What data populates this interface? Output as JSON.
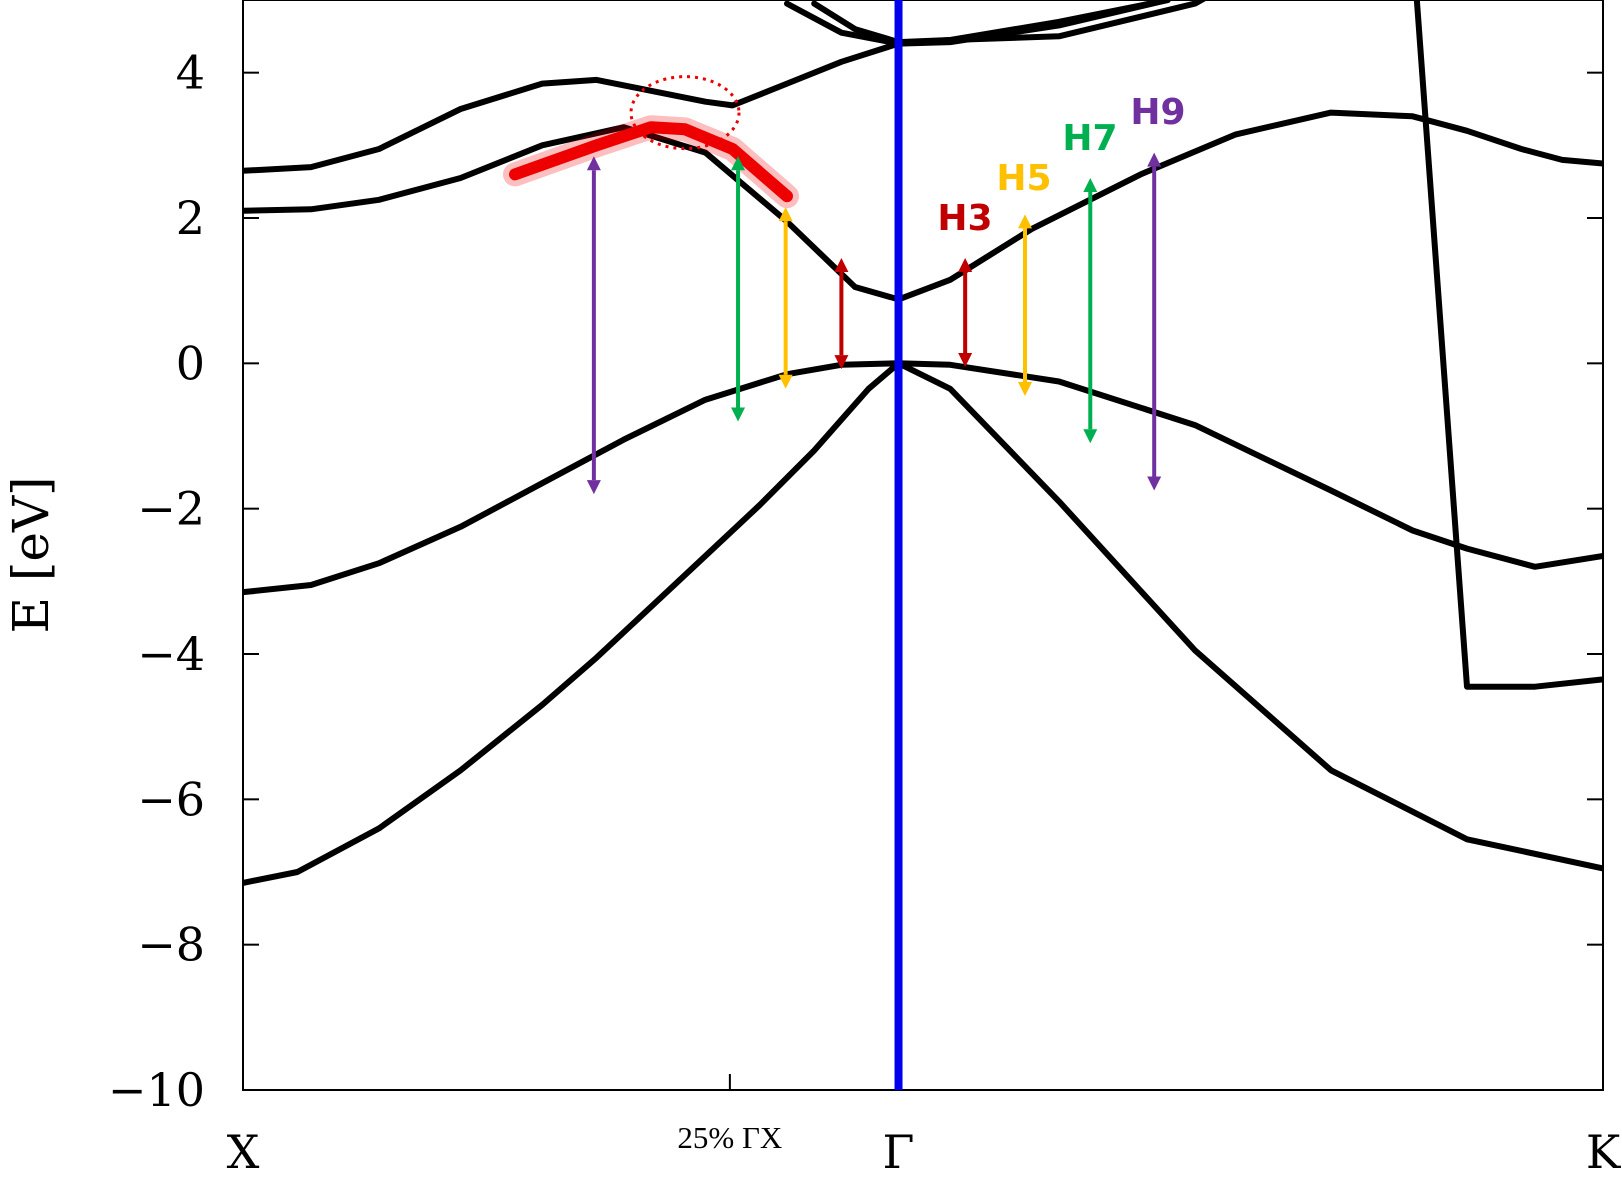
{
  "chart_data": {
    "type": "line",
    "title": "",
    "xlabel": "",
    "ylabel": "E [eV]",
    "ylim": [
      -10,
      5
    ],
    "yticks": [
      4,
      2,
      0,
      -2,
      -4,
      -6,
      -8,
      -10
    ],
    "ytick_labels": [
      "4",
      "2",
      "0",
      "−2",
      "−4",
      "−6",
      "−8",
      "−10"
    ],
    "x_positions": {
      "X": 0,
      "Gamma": 0.482,
      "K": 1
    },
    "x_labels": [
      {
        "name": "X",
        "text": "X",
        "x": 0
      },
      {
        "name": "quarter",
        "text": "25% ΓX",
        "x": 0.358
      },
      {
        "name": "Gamma",
        "text": "Γ",
        "x": 0.482
      },
      {
        "name": "K",
        "text": "K",
        "x": 1
      }
    ],
    "gamma_line_color": "#0000ee",
    "highlight_color": "#ee0000",
    "series": [
      {
        "x": [
          0,
          0.04,
          0.1,
          0.16,
          0.22,
          0.26,
          0.3,
          0.34,
          0.38,
          0.42,
          0.46,
          0.482,
          0.52,
          0.6,
          0.7,
          0.8,
          0.9,
          1.0
        ],
        "y": [
          -7.15,
          -7.0,
          -6.4,
          -5.6,
          -4.7,
          -4.05,
          -3.35,
          -2.65,
          -1.95,
          -1.2,
          -0.35,
          0,
          -0.35,
          -1.9,
          -3.95,
          -5.6,
          -6.55,
          -6.95
        ]
      },
      {
        "x": [
          0,
          0.05,
          0.1,
          0.16,
          0.22,
          0.28,
          0.34,
          0.4,
          0.44,
          0.482,
          0.52,
          0.6,
          0.7,
          0.8,
          0.86,
          0.9,
          0.95,
          1.0
        ],
        "y": [
          -3.15,
          -3.05,
          -2.75,
          -2.25,
          -1.65,
          -1.05,
          -0.5,
          -0.15,
          -0.02,
          0,
          -0.02,
          -0.25,
          -0.85,
          -1.75,
          -2.3,
          -2.55,
          -2.8,
          -2.65
        ]
      },
      {
        "x": [
          0,
          0.05,
          0.1,
          0.16,
          0.22,
          0.28,
          0.34,
          0.4,
          0.45,
          0.482,
          0.52,
          0.58,
          0.66,
          0.73,
          0.8,
          0.86,
          0.9,
          0.94,
          0.97,
          1.0
        ],
        "y": [
          2.1,
          2.12,
          2.25,
          2.55,
          3.0,
          3.25,
          2.9,
          1.95,
          1.05,
          0.88,
          1.15,
          1.85,
          2.6,
          3.15,
          3.45,
          3.4,
          3.2,
          2.95,
          2.8,
          2.75
        ]
      },
      {
        "x": [
          0,
          0.05,
          0.1,
          0.16,
          0.22,
          0.26,
          0.3,
          0.34,
          0.36,
          0.4,
          0.44,
          0.482,
          0.52,
          0.6,
          0.7,
          0.8,
          0.86,
          0.9,
          0.95,
          1.0
        ],
        "y": [
          2.65,
          2.7,
          2.95,
          3.5,
          3.85,
          3.9,
          3.75,
          3.6,
          3.55,
          3.85,
          4.15,
          4.4,
          4.45,
          4.5,
          4.95,
          6.0,
          5.8,
          -4.45,
          -4.45,
          -4.35
        ]
      },
      {
        "x": [
          0.4,
          0.44,
          0.482,
          0.52,
          0.6,
          0.68
        ],
        "y": [
          4.95,
          4.55,
          4.4,
          4.42,
          4.65,
          5.0
        ]
      },
      {
        "x": [
          0.42,
          0.45,
          0.482,
          0.52,
          0.6,
          0.68
        ],
        "y": [
          4.95,
          4.6,
          4.42,
          4.45,
          4.7,
          5.0
        ]
      }
    ],
    "highlight_segment": {
      "x": [
        0.2,
        0.26,
        0.3,
        0.325,
        0.36,
        0.4
      ],
      "y": [
        2.6,
        3.0,
        3.25,
        3.22,
        2.95,
        2.3
      ]
    },
    "transitions": [
      {
        "name": "H9",
        "color": "#7030a0",
        "x": 0.258,
        "y_from": -1.8,
        "y_to": 2.85
      },
      {
        "name": "H7",
        "color": "#00b050",
        "x": 0.364,
        "y_from": -0.8,
        "y_to": 2.85
      },
      {
        "name": "H5",
        "color": "#ffc000",
        "x": 0.399,
        "y_from": -0.35,
        "y_to": 2.15
      },
      {
        "name": "H3",
        "color": "#c00000",
        "x": 0.44,
        "y_from": -0.08,
        "y_to": 1.45
      },
      {
        "name": "H3",
        "color": "#c00000",
        "x": 0.531,
        "y_from": -0.05,
        "y_to": 1.45
      },
      {
        "name": "H5",
        "color": "#ffc000",
        "x": 0.575,
        "y_from": -0.45,
        "y_to": 2.05
      },
      {
        "name": "H7",
        "color": "#00b050",
        "x": 0.623,
        "y_from": -1.1,
        "y_to": 2.55
      },
      {
        "name": "H9",
        "color": "#7030a0",
        "x": 0.67,
        "y_from": -1.75,
        "y_to": 2.9
      }
    ],
    "harmonic_labels": [
      {
        "text": "H3",
        "color": "#c00000"
      },
      {
        "text": "H5",
        "color": "#ffc000"
      },
      {
        "text": "H7",
        "color": "#00b050"
      },
      {
        "text": "H9",
        "color": "#7030a0"
      }
    ]
  }
}
